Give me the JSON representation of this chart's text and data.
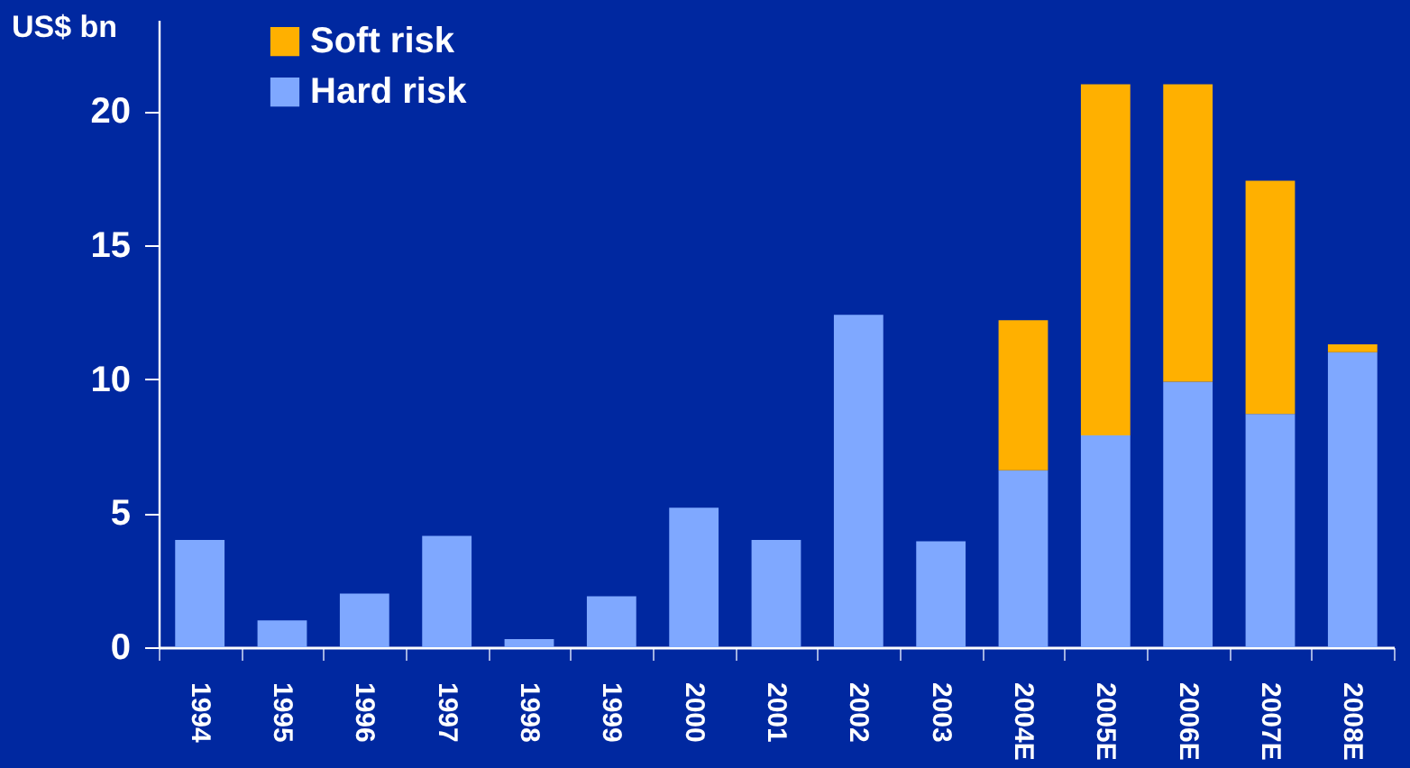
{
  "chart_data": {
    "type": "bar",
    "stacked": true,
    "ylabel": "US$ bn",
    "categories": [
      "1994",
      "1995",
      "1996",
      "1997",
      "1998",
      "1999",
      "2000",
      "2001",
      "2002",
      "2003",
      "2004E",
      "2005E",
      "2006E",
      "2007E",
      "2008E"
    ],
    "series": [
      {
        "name": "Hard risk",
        "color": "#7fa8ff",
        "values": [
          4.0,
          1.0,
          2.0,
          4.15,
          0.3,
          1.9,
          5.2,
          4.0,
          12.4,
          3.95,
          6.6,
          7.9,
          9.9,
          8.7,
          11.0
        ]
      },
      {
        "name": "Soft risk",
        "color": "#ffb000",
        "values": [
          null,
          null,
          null,
          null,
          null,
          null,
          null,
          null,
          null,
          null,
          5.6,
          13.1,
          11.1,
          8.7,
          0.3
        ]
      }
    ],
    "ylim": [
      0,
      23.4
    ],
    "yticks": [
      0,
      5,
      10,
      15,
      20
    ],
    "grid": false,
    "legend": "top left"
  }
}
